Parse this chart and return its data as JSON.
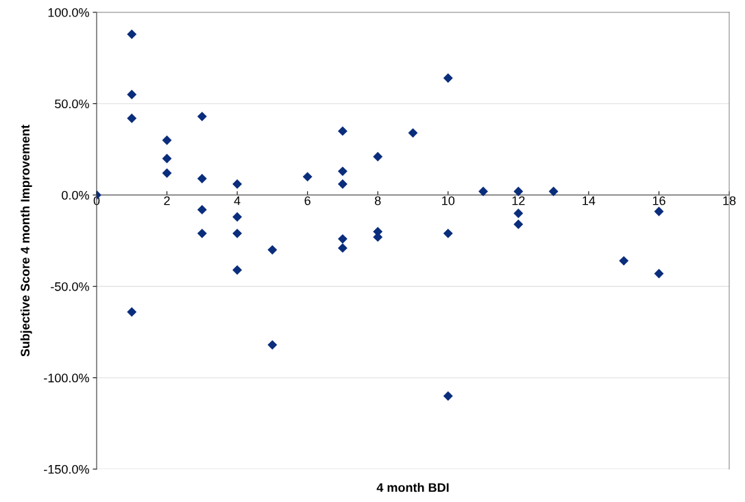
{
  "chart_data": {
    "type": "scatter",
    "xlabel": "4 month BDI",
    "ylabel": "Subjective Score 4 month Improvement",
    "series": [
      {
        "color": "#0a2d7c",
        "x": [
          0,
          1,
          1,
          1,
          1,
          2,
          2,
          2,
          3,
          3,
          3,
          3,
          4,
          4,
          4,
          4,
          5,
          5,
          6,
          7,
          7,
          7,
          7,
          7,
          8,
          8,
          8,
          9,
          10,
          10,
          10,
          11,
          12,
          12,
          12,
          13,
          15,
          16,
          16
        ],
        "values": [
          0,
          88,
          55,
          42,
          -64,
          30,
          20,
          12,
          43,
          9,
          -8,
          -21,
          6,
          -12,
          -21,
          -41,
          -30,
          -82,
          10,
          35,
          13,
          6,
          -24,
          -29,
          21,
          -20,
          -23,
          34,
          64,
          -21,
          -110,
          2,
          2,
          -10,
          -16,
          2,
          -36,
          -9,
          -43
        ]
      }
    ],
    "xlim": [
      0,
      18
    ],
    "xticks": [
      0,
      2,
      4,
      6,
      8,
      10,
      12,
      14,
      16,
      18
    ],
    "ylim": [
      -150,
      100
    ],
    "yticks": [
      {
        "value": -150,
        "label": "-150.0%"
      },
      {
        "value": -100,
        "label": "-100.0%"
      },
      {
        "value": -50,
        "label": "-50.0%"
      },
      {
        "value": 0,
        "label": "0.0%"
      },
      {
        "value": 50,
        "label": "50.0%"
      },
      {
        "value": 100,
        "label": "100.0%"
      }
    ],
    "grid": "y",
    "marker": "diamond"
  }
}
